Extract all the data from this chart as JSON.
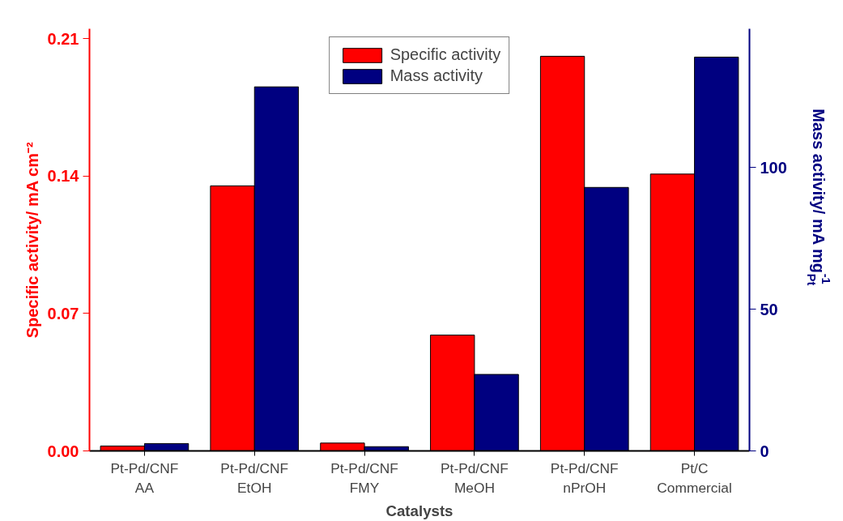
{
  "chart_data": {
    "type": "bar",
    "categories": [
      "Pt-Pd/CNF\nAA",
      "Pt-Pd/CNF\nEtOH",
      "Pt-Pd/CNF\nFMY",
      "Pt-Pd/CNF\nMeOH",
      "Pt-Pd/CNF\nnPrOH",
      "Pt/C\nCommercial"
    ],
    "xlabel": "Catalysts",
    "ylabel": "Specific activity/ mA cm⁻²",
    "y2label": "Mass activity/ mA mg$_{Pt}$$^{-1}$",
    "series": [
      {
        "name": "Specific activity",
        "color": "#ff0000",
        "values": [
          0.0025,
          0.135,
          0.004,
          0.059,
          0.201,
          0.141
        ]
      },
      {
        "name": "Mass activity",
        "color": "#000080",
        "axis": "y2",
        "values": [
          2.6,
          128.5,
          1.5,
          27,
          93,
          139
        ]
      }
    ],
    "ylim": [
      0,
      0.215
    ],
    "yticks": [
      {
        "value": 0,
        "label": "0.00"
      },
      0.07,
      0.14,
      0.21
    ],
    "y2lim": [
      0,
      149
    ],
    "y2ticks": [
      0,
      50,
      100
    ],
    "grid": false,
    "legend": "top"
  }
}
